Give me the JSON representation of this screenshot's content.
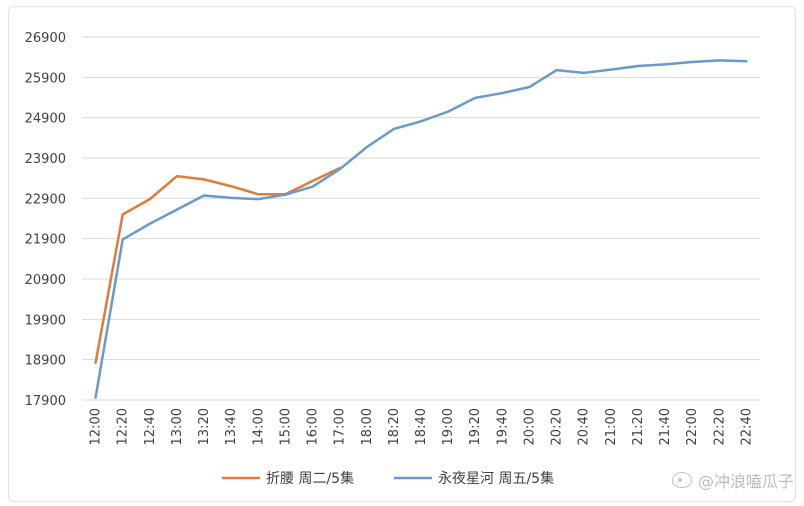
{
  "chart_data": {
    "type": "line",
    "categories": [
      "12:00",
      "12:20",
      "12:40",
      "13:00",
      "13:20",
      "13:40",
      "14:00",
      "15:00",
      "16:00",
      "17:00",
      "18:00",
      "18:20",
      "18:40",
      "19:00",
      "19:20",
      "19:40",
      "20:00",
      "20:20",
      "20:40",
      "21:00",
      "21:20",
      "21:40",
      "22:00",
      "22:20",
      "22:40"
    ],
    "ylim": [
      17900,
      26900
    ],
    "yticks": [
      17900,
      18900,
      19900,
      20900,
      21900,
      22900,
      23900,
      24900,
      25900,
      26900
    ],
    "ytick_labels": [
      "17900",
      "18900",
      "19900",
      "20900",
      "21900",
      "22900",
      "23900",
      "24900",
      "25900",
      "26900"
    ],
    "grid": "horizontal",
    "legend_position": "bottom",
    "series": [
      {
        "name": "折腰 周二/5集",
        "color": "#E07B39",
        "values": [
          18820,
          22500,
          22880,
          23450,
          23370,
          23200,
          23000,
          23000,
          23330,
          23650,
          null,
          null,
          null,
          null,
          null,
          null,
          null,
          null,
          null,
          null,
          null,
          null,
          null,
          null,
          null
        ]
      },
      {
        "name": "永夜星河 周五/5集",
        "color": "#6A99CB",
        "values": [
          17960,
          21880,
          22270,
          22620,
          22970,
          22910,
          22880,
          22990,
          23190,
          23620,
          24170,
          24620,
          24810,
          25050,
          25390,
          25510,
          25660,
          26080,
          26010,
          26090,
          26180,
          26220,
          26280,
          26320,
          26300
        ]
      }
    ]
  },
  "watermark": "@冲浪嗑瓜子"
}
